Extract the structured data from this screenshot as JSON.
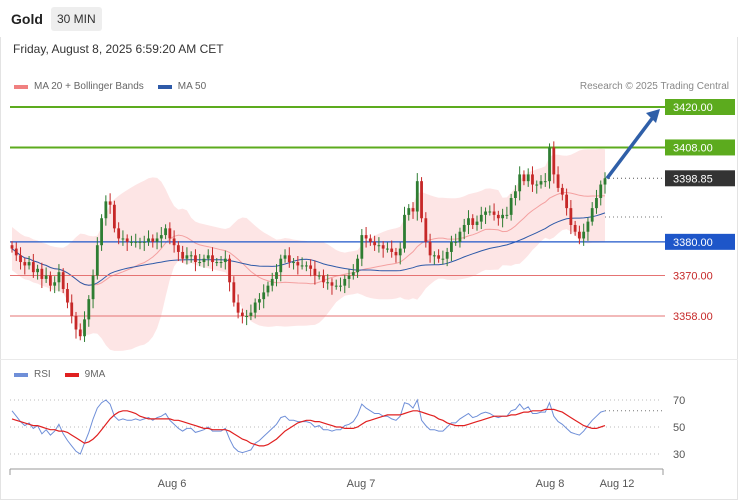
{
  "header": {
    "symbol": "Gold",
    "timeframe": "30 MIN"
  },
  "datetime": "Friday, August 8, 2025 6:59:20 AM CET",
  "legend": {
    "ma20": "MA 20 + Bollinger Bands",
    "ma50": "MA 50"
  },
  "credit": "Research © 2025 Trading Central",
  "rsi_legend": {
    "rsi": "RSI",
    "ma9": "9MA"
  },
  "colors": {
    "bull": "#2e7d32",
    "bear": "#c62828",
    "resistance": "#5cab1e",
    "support_line": "#e57373",
    "pivot": "#1e56c9",
    "ma50": "#2e5aa8",
    "band_fill": "#fde0e0",
    "arrow": "#2f5fa8",
    "price_label": "#333333",
    "rsi": "#6f8fd8",
    "rsi_ma": "#e02020"
  },
  "chart_data": [
    {
      "type": "candlestick",
      "title": "",
      "ylim": [
        3340,
        3430
      ],
      "x_ticks": [
        "Aug 6",
        "Aug 7",
        "Aug 8",
        "Aug 12"
      ],
      "levels": [
        {
          "value": 3420.0,
          "label": "3420.00",
          "kind": "resistance"
        },
        {
          "value": 3408.0,
          "label": "3408.00",
          "kind": "resistance"
        },
        {
          "value": 3398.85,
          "label": "3398.85",
          "kind": "last"
        },
        {
          "value": 3380.0,
          "label": "3380.00",
          "kind": "pivot"
        },
        {
          "value": 3370.0,
          "label": "3370.00",
          "kind": "support"
        },
        {
          "value": 3358.0,
          "label": "3358.00",
          "kind": "support"
        }
      ],
      "forecast_target": 3420,
      "close": [
        3378,
        3376,
        3374,
        3373,
        3374,
        3371,
        3372,
        3369,
        3370,
        3367,
        3368,
        3371,
        3366,
        3362,
        3358,
        3354,
        3352,
        3357,
        3363,
        3370,
        3379,
        3387,
        3392,
        3391,
        3384,
        3381,
        3381,
        3380,
        3380,
        3380,
        3380,
        3380,
        3381,
        3380,
        3381,
        3382,
        3384,
        3381,
        3379,
        3377,
        3375,
        3376,
        3376,
        3374,
        3374,
        3375,
        3376,
        3374,
        3374,
        3374,
        3375,
        3368,
        3362,
        3359,
        3358,
        3358,
        3359,
        3362,
        3363,
        3365,
        3367,
        3369,
        3371,
        3375,
        3376,
        3374,
        3374,
        3373,
        3373,
        3373,
        3372,
        3370,
        3370,
        3368,
        3368,
        3367,
        3367,
        3367,
        3369,
        3370,
        3371,
        3375,
        3382,
        3381,
        3380,
        3379,
        3379,
        3378,
        3378,
        3377,
        3376,
        3378,
        3388,
        3390,
        3389,
        3398,
        3387,
        3380,
        3376,
        3376,
        3375,
        3375,
        3377,
        3380,
        3380,
        3383,
        3385,
        3387,
        3385,
        3386,
        3388,
        3389,
        3389,
        3388,
        3387,
        3388,
        3388,
        3393,
        3395,
        3400,
        3398,
        3400,
        3397,
        3397,
        3398,
        3398,
        3408,
        3400,
        3396,
        3394,
        3390,
        3385,
        3383,
        3381,
        3383,
        3386,
        3390,
        3393,
        3397,
        3398.85
      ],
      "open": [
        3379,
        3378,
        3376,
        3374,
        3373,
        3374,
        3371,
        3372,
        3369,
        3370,
        3367,
        3368,
        3371,
        3366,
        3362,
        3358,
        3354,
        3352,
        3357,
        3363,
        3370,
        3379,
        3387,
        3392,
        3391,
        3384,
        3381,
        3381,
        3380,
        3380,
        3380,
        3380,
        3380,
        3381,
        3380,
        3381,
        3382,
        3384,
        3381,
        3379,
        3377,
        3375,
        3376,
        3376,
        3374,
        3374,
        3375,
        3376,
        3374,
        3374,
        3374,
        3375,
        3368,
        3362,
        3359,
        3358,
        3358,
        3359,
        3362,
        3363,
        3365,
        3367,
        3369,
        3371,
        3375,
        3376,
        3374,
        3374,
        3373,
        3373,
        3373,
        3372,
        3370,
        3370,
        3368,
        3368,
        3367,
        3367,
        3367,
        3369,
        3370,
        3371,
        3375,
        3382,
        3381,
        3380,
        3379,
        3379,
        3378,
        3378,
        3377,
        3376,
        3378,
        3388,
        3390,
        3389,
        3398,
        3387,
        3380,
        3376,
        3376,
        3375,
        3375,
        3377,
        3380,
        3380,
        3383,
        3385,
        3387,
        3385,
        3386,
        3388,
        3389,
        3389,
        3388,
        3387,
        3388,
        3388,
        3393,
        3395,
        3400,
        3398,
        3400,
        3397,
        3397,
        3398,
        3398,
        3408,
        3400,
        3396,
        3394,
        3390,
        3385,
        3383,
        3381,
        3383,
        3386,
        3390,
        3393,
        3397
      ]
    },
    {
      "type": "line",
      "title": "",
      "ylim": [
        25,
        75
      ],
      "y_ticks": [
        70,
        50,
        30
      ],
      "series": [
        {
          "name": "RSI",
          "values": [
            62,
            58,
            54,
            51,
            53,
            49,
            51,
            45,
            48,
            44,
            47,
            52,
            45,
            40,
            36,
            32,
            30,
            38,
            46,
            56,
            64,
            68,
            70,
            67,
            58,
            55,
            56,
            55,
            55,
            56,
            55,
            56,
            57,
            55,
            57,
            58,
            60,
            55,
            52,
            49,
            47,
            49,
            49,
            46,
            47,
            48,
            50,
            47,
            47,
            47,
            49,
            41,
            35,
            32,
            31,
            32,
            33,
            38,
            40,
            43,
            46,
            49,
            52,
            57,
            58,
            55,
            55,
            54,
            54,
            54,
            53,
            50,
            51,
            48,
            48,
            47,
            48,
            48,
            51,
            52,
            54,
            59,
            67,
            64,
            62,
            60,
            60,
            58,
            58,
            56,
            55,
            58,
            68,
            67,
            64,
            70,
            55,
            51,
            48,
            48,
            47,
            47,
            50,
            53,
            53,
            56,
            58,
            60,
            57,
            58,
            60,
            61,
            60,
            58,
            57,
            58,
            58,
            62,
            63,
            67,
            63,
            65,
            60,
            60,
            61,
            61,
            68,
            58,
            54,
            52,
            49,
            46,
            45,
            44,
            47,
            51,
            55,
            58,
            61,
            62
          ]
        },
        {
          "name": "9MA",
          "values": [
            56,
            55,
            54,
            53,
            52,
            51,
            51,
            50,
            49,
            48,
            48,
            47,
            47,
            46,
            44,
            42,
            40,
            38,
            39,
            41,
            44,
            48,
            52,
            56,
            59,
            61,
            62,
            62,
            61,
            60,
            58,
            57,
            56,
            56,
            56,
            56,
            56,
            56,
            55,
            55,
            54,
            53,
            52,
            51,
            50,
            49,
            49,
            48,
            48,
            48,
            48,
            47,
            45,
            43,
            41,
            40,
            38,
            37,
            36,
            36,
            37,
            39,
            41,
            44,
            47,
            49,
            51,
            53,
            54,
            55,
            55,
            54,
            54,
            53,
            52,
            51,
            50,
            50,
            49,
            49,
            49,
            50,
            52,
            54,
            55,
            56,
            57,
            58,
            59,
            59,
            59,
            59,
            60,
            61,
            62,
            62,
            61,
            60,
            59,
            58,
            56,
            55,
            53,
            52,
            51,
            51,
            51,
            52,
            53,
            54,
            55,
            56,
            57,
            58,
            58,
            58,
            58,
            59,
            59,
            60,
            61,
            61,
            62,
            62,
            62,
            63,
            63,
            63,
            62,
            61,
            59,
            57,
            55,
            53,
            51,
            50,
            49,
            49,
            50,
            51
          ]
        }
      ]
    }
  ]
}
